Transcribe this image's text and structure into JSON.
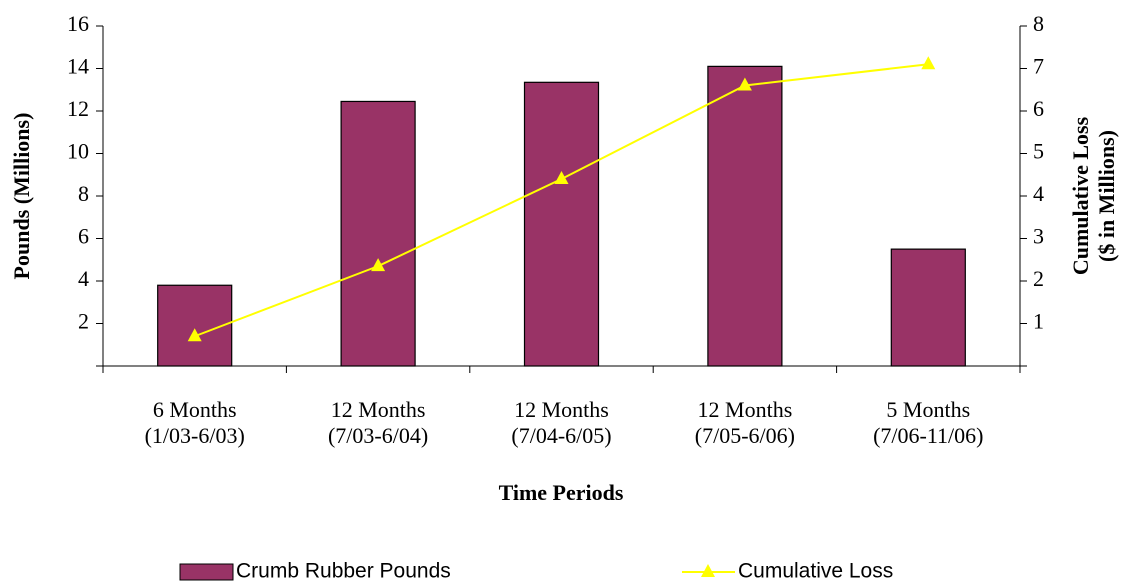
{
  "chart_data": {
    "type": "bar",
    "x_label": "Time Periods",
    "y_label": "Pounds (Millions)",
    "y2_label": "Cumulative Loss\n($ in Millions)",
    "categories": [
      "6 Months\n(1/03-6/03)",
      "12 Months\n(7/03-6/04)",
      "12 Months\n(7/04-6/05)",
      "12 Months\n(7/05-6/06)",
      "5 Months\n(7/06-11/06)"
    ],
    "series": [
      {
        "name": "Crumb Rubber Pounds",
        "type": "bar",
        "color": "#993366",
        "values": [
          3.8,
          12.45,
          13.35,
          14.1,
          5.5
        ]
      },
      {
        "name": "Cumulative Loss",
        "type": "line",
        "axis": "y2",
        "color": "#ffff00",
        "values": [
          0.7,
          2.35,
          4.4,
          6.6,
          7.1
        ]
      }
    ],
    "ylim": [
      0,
      16
    ],
    "yticks": [
      2,
      4,
      6,
      8,
      10,
      12,
      14,
      16
    ],
    "y2lim": [
      0,
      8
    ],
    "y2ticks": [
      1,
      2,
      3,
      4,
      5,
      6,
      7,
      8
    ],
    "legend": "bottom"
  }
}
